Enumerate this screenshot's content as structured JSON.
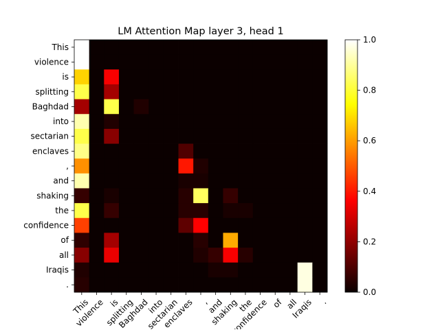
{
  "chart_data": {
    "type": "heatmap",
    "title": "LM Attention Map layer 3, head 1",
    "xlabel": "",
    "ylabel": "",
    "x_tick_labels": [
      "This",
      "violence",
      "is",
      "splitting",
      "Baghdad",
      "into",
      "sectarian",
      "enclaves",
      ",",
      "and",
      "shaking",
      "the",
      "confidence",
      "of",
      "all",
      "Iraqis",
      "."
    ],
    "y_tick_labels": [
      "This",
      "violence",
      "is",
      "splitting",
      "Baghdad",
      "into",
      "sectarian",
      "enclaves",
      ",",
      "and",
      "shaking",
      "the",
      "confidence",
      "of",
      "all",
      "Iraqis",
      "."
    ],
    "colormap": "hot",
    "vmin": 0.0,
    "vmax": 1.0,
    "colorbar_ticks": [
      "0.0",
      "0.2",
      "0.4",
      "0.6",
      "0.8",
      "1.0"
    ],
    "values": [
      [
        1.0,
        0.0,
        0.0,
        0.0,
        0.0,
        0.0,
        0.0,
        0.0,
        0.0,
        0.0,
        0.0,
        0.0,
        0.0,
        0.0,
        0.0,
        0.0,
        0.0
      ],
      [
        1.0,
        0.0,
        0.0,
        0.0,
        0.0,
        0.0,
        0.0,
        0.0,
        0.0,
        0.0,
        0.0,
        0.0,
        0.0,
        0.0,
        0.0,
        0.0,
        0.0
      ],
      [
        0.68,
        0.0,
        0.34,
        0.0,
        0.0,
        0.0,
        0.0,
        0.0,
        0.0,
        0.0,
        0.0,
        0.0,
        0.0,
        0.0,
        0.0,
        0.0,
        0.0
      ],
      [
        0.82,
        0.0,
        0.22,
        0.0,
        0.0,
        0.0,
        0.0,
        0.0,
        0.0,
        0.0,
        0.0,
        0.0,
        0.0,
        0.0,
        0.0,
        0.0,
        0.0
      ],
      [
        0.22,
        0.0,
        0.82,
        0.0,
        0.03,
        0.0,
        0.0,
        0.0,
        0.0,
        0.0,
        0.0,
        0.0,
        0.0,
        0.0,
        0.0,
        0.0,
        0.0
      ],
      [
        0.92,
        0.0,
        0.03,
        0.0,
        0.0,
        0.0,
        0.0,
        0.0,
        0.0,
        0.0,
        0.0,
        0.0,
        0.0,
        0.0,
        0.0,
        0.0,
        0.0
      ],
      [
        0.82,
        0.0,
        0.18,
        0.0,
        0.0,
        0.0,
        0.0,
        0.0,
        0.0,
        0.0,
        0.0,
        0.0,
        0.0,
        0.0,
        0.0,
        0.0,
        0.0
      ],
      [
        0.88,
        0.0,
        0.0,
        0.0,
        0.0,
        0.0,
        0.0,
        0.1,
        0.0,
        0.0,
        0.0,
        0.0,
        0.0,
        0.0,
        0.0,
        0.0,
        0.0
      ],
      [
        0.58,
        0.0,
        0.0,
        0.0,
        0.0,
        0.0,
        0.0,
        0.4,
        0.03,
        0.0,
        0.0,
        0.0,
        0.0,
        0.0,
        0.0,
        0.0,
        0.0
      ],
      [
        0.92,
        0.0,
        0.0,
        0.0,
        0.0,
        0.0,
        0.0,
        0.02,
        0.02,
        0.0,
        0.0,
        0.0,
        0.0,
        0.0,
        0.0,
        0.0,
        0.0
      ],
      [
        0.06,
        0.0,
        0.02,
        0.0,
        0.0,
        0.0,
        0.0,
        0.04,
        0.84,
        0.0,
        0.06,
        0.0,
        0.0,
        0.0,
        0.0,
        0.0,
        0.0
      ],
      [
        0.82,
        0.0,
        0.06,
        0.0,
        0.0,
        0.0,
        0.0,
        0.04,
        0.04,
        0.0,
        0.02,
        0.02,
        0.0,
        0.0,
        0.0,
        0.0,
        0.0
      ],
      [
        0.46,
        0.0,
        0.0,
        0.0,
        0.0,
        0.0,
        0.0,
        0.12,
        0.36,
        0.0,
        0.0,
        0.0,
        0.0,
        0.0,
        0.0,
        0.0,
        0.0
      ],
      [
        0.05,
        0.0,
        0.22,
        0.0,
        0.0,
        0.0,
        0.0,
        0.0,
        0.04,
        0.0,
        0.62,
        0.0,
        0.0,
        0.0,
        0.0,
        0.0,
        0.0
      ],
      [
        0.18,
        0.0,
        0.32,
        0.0,
        0.0,
        0.0,
        0.0,
        0.0,
        0.03,
        0.06,
        0.34,
        0.04,
        0.0,
        0.0,
        0.0,
        0.0,
        0.0
      ],
      [
        0.03,
        0.0,
        0.0,
        0.0,
        0.0,
        0.0,
        0.0,
        0.0,
        0.0,
        0.02,
        0.02,
        0.0,
        0.0,
        0.0,
        0.0,
        0.97,
        0.0
      ],
      [
        0.04,
        0.0,
        0.0,
        0.0,
        0.0,
        0.0,
        0.0,
        0.0,
        0.0,
        0.0,
        0.0,
        0.0,
        0.0,
        0.0,
        0.0,
        0.97,
        0.0
      ]
    ]
  }
}
